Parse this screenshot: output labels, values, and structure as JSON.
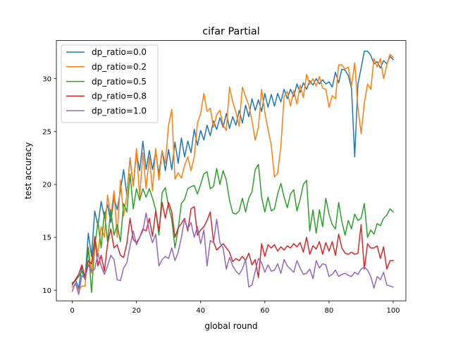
{
  "chart_data": {
    "type": "line",
    "title": "cifar Partial",
    "xlabel": "global round",
    "ylabel": "test accuracy",
    "xlim": [
      -4.95,
      103.95
    ],
    "ylim": [
      9.0,
      33.6
    ],
    "xticks": [
      0,
      20,
      40,
      60,
      80,
      100
    ],
    "yticks": [
      10,
      15,
      20,
      25,
      30
    ],
    "legend_position": "upper-left",
    "grid": false,
    "series": [
      {
        "name": "dp_ratio=0.0",
        "color": "#1f77b4",
        "values": [
          10.5,
          11.0,
          10.2,
          12.3,
          11.0,
          15.4,
          13.2,
          17.5,
          16.1,
          18.4,
          16.9,
          18.1,
          16.4,
          18.8,
          17.6,
          19.4,
          21.4,
          19.0,
          22.5,
          19.9,
          23.0,
          21.3,
          24.1,
          21.4,
          23.2,
          21.4,
          23.1,
          21.0,
          23.2,
          21.3,
          23.3,
          21.4,
          24.0,
          22.0,
          24.4,
          22.6,
          24.1,
          23.0,
          25.2,
          23.7,
          25.1,
          24.2,
          25.6,
          24.6,
          26.0,
          25.2,
          26.3,
          25.4,
          26.7,
          25.3,
          26.4,
          25.6,
          27.0,
          25.8,
          27.5,
          26.4,
          28.1,
          27.0,
          28.0,
          26.9,
          28.6,
          27.3,
          28.5,
          27.4,
          28.6,
          27.8,
          29.0,
          28.1,
          29.0,
          28.3,
          29.5,
          28.7,
          29.6,
          29.0,
          29.8,
          29.4,
          30.0,
          29.5,
          29.9,
          29.5,
          29.7,
          29.2,
          30.6,
          29.6,
          30.9,
          30.8,
          30.3,
          29.1,
          22.6,
          29.5,
          31.0,
          32.6,
          32.6,
          32.2,
          31.4,
          31.6,
          31.0,
          31.7,
          31.4,
          32.1,
          31.8
        ],
        "note_values_start": 0
      },
      {
        "name": "dp_ratio=0.2",
        "color": "#ff7f0e",
        "values": [
          10.3,
          10.6,
          10.0,
          10.4,
          10.4,
          14.1,
          11.6,
          15.1,
          13.5,
          16.0,
          15.0,
          19.0,
          16.9,
          19.4,
          15.0,
          20.4,
          17.0,
          19.0,
          22.4,
          19.8,
          23.4,
          18.8,
          23.0,
          19.6,
          22.6,
          19.4,
          23.4,
          20.4,
          23.2,
          22.0,
          25.6,
          27.1,
          20.5,
          21.1,
          20.6,
          21.8,
          22.6,
          21.3,
          22.6,
          25.8,
          26.7,
          28.6,
          26.9,
          27.2,
          25.4,
          26.6,
          27.0,
          25.6,
          25.1,
          29.2,
          27.8,
          26.8,
          25.5,
          29.2,
          28.3,
          27.5,
          26.0,
          24.2,
          25.4,
          29.0,
          26.8,
          25.2,
          23.7,
          20.7,
          21.1,
          23.6,
          28.3,
          28.8,
          27.4,
          28.9,
          27.6,
          29.4,
          28.2,
          30.4,
          29.5,
          30.0,
          29.3,
          30.2,
          29.1,
          29.0,
          27.3,
          28.4,
          28.1,
          31.3,
          31.3,
          30.9,
          31.1,
          29.3,
          31.5,
          27.3,
          24.8,
          27.7,
          29.5,
          29.0,
          31.9,
          31.1,
          31.9,
          30.0,
          31.3,
          32.3,
          32.0
        ],
        "note_values_start": 0
      },
      {
        "name": "dp_ratio=0.5",
        "color": "#2ca02c",
        "values": [
          10.7,
          10.9,
          11.3,
          11.8,
          11.0,
          14.0,
          9.8,
          14.1,
          16.5,
          14.0,
          17.4,
          14.6,
          17.6,
          15.2,
          16.2,
          14.6,
          18.2,
          17.4,
          21.0,
          17.7,
          19.6,
          18.5,
          19.6,
          18.8,
          19.6,
          18.7,
          17.6,
          15.2,
          19.2,
          19.7,
          17.9,
          16.7,
          14.0,
          15.8,
          18.2,
          18.6,
          19.6,
          19.8,
          19.9,
          19.1,
          20.0,
          21.0,
          21.2,
          19.6,
          19.8,
          21.5,
          20.0,
          21.3,
          20.4,
          18.5,
          17.3,
          17.2,
          17.5,
          18.7,
          17.4,
          18.7,
          19.3,
          21.4,
          21.9,
          18.8,
          17.4,
          18.8,
          17.5,
          17.7,
          19.1,
          20.1,
          18.8,
          17.8,
          19.1,
          19.5,
          17.5,
          18.6,
          20.0,
          20.4,
          15.6,
          17.6,
          15.4,
          17.6,
          16.0,
          18.7,
          17.2,
          16.2,
          15.8,
          18.3,
          16.5,
          15.2,
          16.6,
          15.8,
          17.2,
          16.6,
          16.8,
          18.2,
          15.0,
          15.7,
          15.3,
          16.3,
          16.1,
          16.8,
          17.1,
          17.7,
          17.4
        ],
        "note_values_start": 0
      },
      {
        "name": "dp_ratio=0.8",
        "color": "#d62728",
        "values": [
          10.6,
          11.0,
          11.5,
          12.4,
          11.2,
          12.8,
          12.5,
          15.0,
          12.3,
          13.3,
          11.8,
          14.4,
          15.8,
          14.0,
          14.3,
          13.3,
          13.1,
          14.4,
          16.8,
          14.8,
          14.5,
          15.0,
          15.8,
          15.6,
          16.8,
          15.1,
          17.5,
          15.6,
          18.3,
          16.8,
          18.3,
          17.4,
          15.0,
          15.9,
          16.3,
          16.8,
          15.6,
          17.7,
          17.9,
          15.2,
          15.7,
          16.0,
          16.6,
          17.4,
          14.6,
          13.8,
          14.1,
          14.4,
          14.0,
          13.6,
          12.7,
          13.0,
          12.8,
          13.2,
          12.8,
          13.5,
          12.4,
          12.9,
          11.2,
          14.4,
          13.2,
          14.3,
          14.0,
          14.3,
          13.7,
          14.1,
          13.8,
          14.2,
          14.0,
          14.4,
          14.1,
          14.5,
          13.6,
          15.0,
          13.4,
          14.2,
          13.9,
          14.6,
          13.4,
          14.5,
          13.7,
          14.6,
          13.3,
          15.3,
          14.0,
          13.5,
          13.4,
          13.6,
          13.4,
          13.5,
          16.2,
          12.0,
          14.4,
          14.0,
          14.0,
          14.2,
          13.0,
          14.1,
          12.0,
          12.8,
          12.8
        ],
        "note_values_start": 0
      },
      {
        "name": "dp_ratio=1.0",
        "color": "#9467bd",
        "values": [
          9.9,
          10.7,
          9.6,
          11.4,
          11.1,
          12.4,
          11.8,
          12.0,
          13.5,
          12.3,
          11.5,
          12.3,
          13.3,
          12.9,
          11.0,
          10.9,
          12.1,
          12.6,
          14.2,
          15.6,
          14.3,
          15.0,
          15.6,
          17.3,
          15.5,
          14.5,
          15.3,
          12.3,
          12.9,
          13.2,
          13.0,
          14.0,
          12.8,
          13.6,
          15.0,
          16.7,
          15.8,
          16.4,
          15.0,
          16.0,
          14.4,
          15.7,
          12.3,
          14.7,
          14.5,
          16.7,
          14.5,
          14.0,
          12.0,
          13.1,
          12.3,
          11.8,
          11.5,
          12.0,
          12.9,
          10.3,
          10.5,
          11.8,
          13.0,
          12.6,
          11.7,
          12.4,
          11.8,
          11.9,
          12.5,
          11.6,
          12.9,
          12.3,
          12.0,
          11.7,
          12.8,
          12.1,
          11.5,
          11.6,
          12.0,
          11.1,
          12.8,
          12.1,
          12.5,
          12.4,
          11.3,
          11.5,
          11.9,
          11.3,
          11.5,
          11.6,
          11.4,
          11.3,
          11.7,
          11.5,
          12.0,
          12.2,
          11.9,
          11.3,
          10.2,
          11.3,
          11.0,
          11.7,
          10.5,
          10.4,
          10.3
        ],
        "note_values_start": 0
      }
    ]
  }
}
